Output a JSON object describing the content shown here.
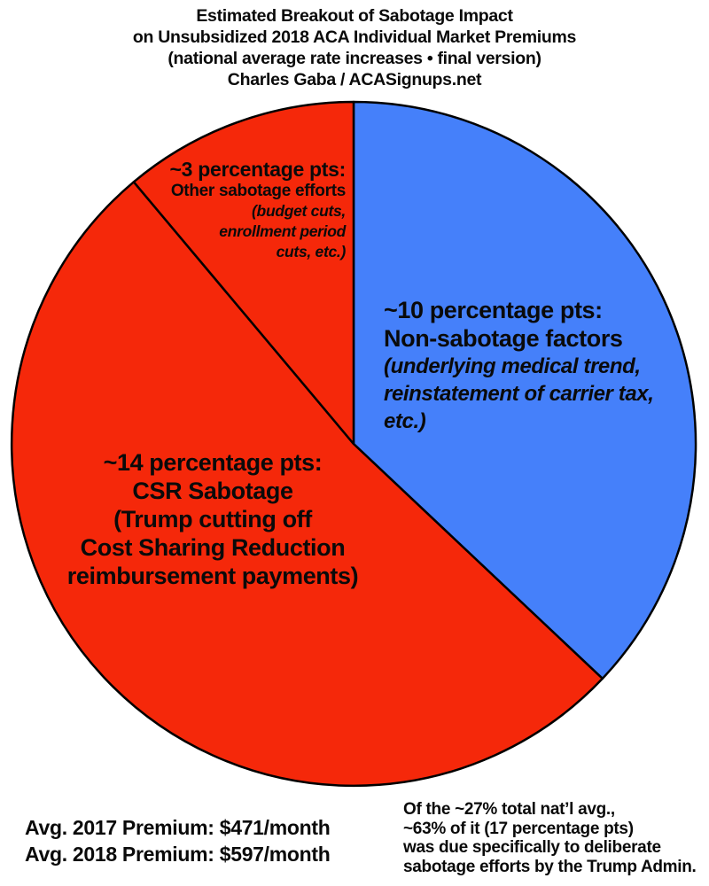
{
  "header": {
    "line1": "Estimated Breakout of Sabotage Impact",
    "line2": "on Unsubsidized 2018 ACA Individual Market Premiums",
    "line3": "(national average rate increases • final version)",
    "line4": "Charles Gaba / ACASignups.net"
  },
  "chart_data": {
    "type": "pie",
    "title": "Estimated Breakout of Sabotage Impact on Unsubsidized 2018 ACA Individual Market Premiums",
    "units": "percentage points",
    "total": 27,
    "direction": "clockwise",
    "start_angle_deg": 0,
    "slices": [
      {
        "name": "Non-sabotage factors",
        "value": 10,
        "color": "#4580fa",
        "detail": "(underlying medical trend, reinstatement of carrier tax, etc.)"
      },
      {
        "name": "CSR Sabotage",
        "value": 14,
        "color": "#f5280a",
        "detail": "(Trump cutting off Cost Sharing Reduction reimbursement payments)"
      },
      {
        "name": "Other sabotage efforts",
        "value": 3,
        "color": "#f5280a",
        "detail": "(budget cuts, enrollment period cuts, etc.)"
      }
    ]
  },
  "labels": {
    "other_sabotage": {
      "headline": "~3 percentage pts:",
      "name": "Other sabotage efforts",
      "detail1": "(budget cuts,",
      "detail2": "enrollment period",
      "detail3": "cuts, etc.)"
    },
    "non_sabotage": {
      "headline": "~10 percentage pts:",
      "name": "Non-sabotage factors",
      "detail1": "(underlying medical trend,",
      "detail2": "reinstatement of carrier tax,",
      "detail3": "etc.)"
    },
    "csr_sabotage": {
      "headline": "~14 percentage pts:",
      "line2": "CSR Sabotage",
      "line3": "(Trump cutting off",
      "line4": "Cost Sharing Reduction",
      "line5": "reimbursement payments)"
    }
  },
  "footer": {
    "premium_2017": "Avg. 2017 Premium: $471/month",
    "premium_2018": "Avg. 2018 Premium: $597/month",
    "note_line1": "Of the ~27% total nat’l avg.,",
    "note_line2": "~63% of it (17 percentage pts)",
    "note_line3": "was due specifically to deliberate",
    "note_line4": "sabotage efforts by the Trump Admin."
  }
}
